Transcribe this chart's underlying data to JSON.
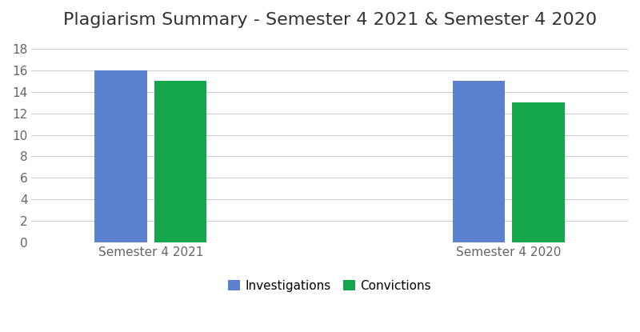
{
  "title": "Plagiarism Summary - Semester 4 2021 & Semester 4 2020",
  "categories": [
    "Semester 4 2021",
    "Semester 4 2020"
  ],
  "investigations": [
    16,
    15
  ],
  "convictions": [
    15,
    13
  ],
  "bar_color_investigations": "#5B80CE",
  "bar_color_convictions": "#14A84B",
  "ylim": [
    0,
    19
  ],
  "yticks": [
    0,
    2,
    4,
    6,
    8,
    10,
    12,
    14,
    16,
    18
  ],
  "legend_labels": [
    "Investigations",
    "Convictions"
  ],
  "background_color": "#ffffff",
  "grid_color": "#d0d0d0",
  "title_fontsize": 16,
  "tick_fontsize": 11,
  "legend_fontsize": 11,
  "bar_width": 0.22,
  "bar_gap": 0.03,
  "group_positions": [
    1.0,
    2.5
  ]
}
